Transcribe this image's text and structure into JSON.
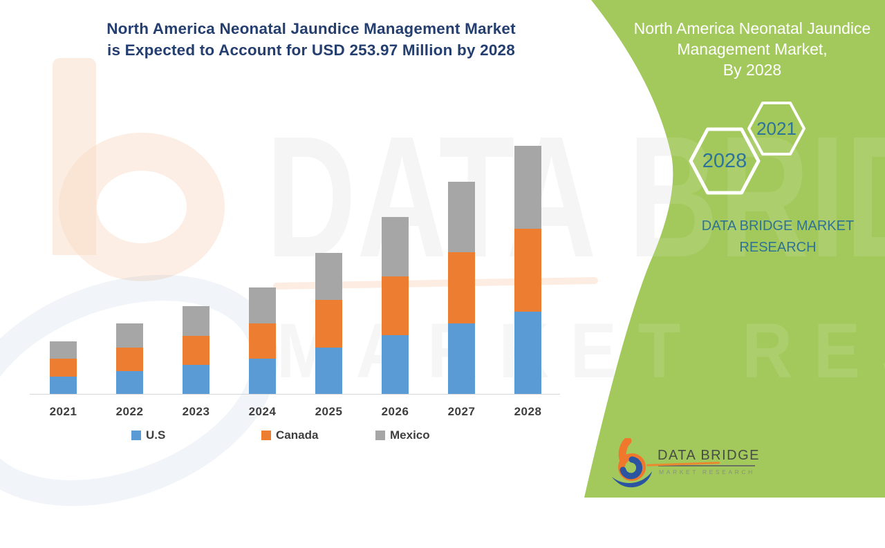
{
  "header": {
    "title_line1": "North America Neonatal Jaundice Management Market",
    "title_line2": "is Expected to Account for USD 253.97 Million by 2028",
    "color": "#243E6F"
  },
  "chart_data": {
    "type": "bar",
    "stacked": true,
    "title": "North America Neonatal Jaundice Management Market is Expected to Account for USD 253.97 Million by 2028",
    "unit": "USD Million",
    "categories": [
      "2021",
      "2022",
      "2023",
      "2024",
      "2025",
      "2026",
      "2027",
      "2028"
    ],
    "series": [
      {
        "name": "U.S",
        "color": "#5B9BD5",
        "values": [
          17.7,
          23.3,
          29.7,
          36.1,
          47.4,
          60.1,
          72.2,
          84.2
        ]
      },
      {
        "name": "Canada",
        "color": "#ED7D31",
        "values": [
          18.4,
          24.1,
          29.7,
          36.1,
          48.8,
          60.1,
          72.9,
          84.9
        ]
      },
      {
        "name": "Mexico",
        "color": "#A6A6A6",
        "values": [
          17.7,
          24.8,
          30.4,
          36.8,
          48.1,
          60.8,
          72.2,
          84.9
        ]
      }
    ],
    "callout_total_2028": 253.97,
    "ylim": [
      0,
      260
    ],
    "gridlines": false,
    "legend_position": "bottom"
  },
  "side_panel": {
    "background": "#A3C95C",
    "title_line1": "North America Neonatal Jaundice",
    "title_line2": "Management Market,",
    "title_line3": "By 2028",
    "hexagons": [
      {
        "label": "2021"
      },
      {
        "label": "2028"
      }
    ],
    "brand_line1": "DATA BRIDGE MARKET",
    "brand_line2": "RESEARCH",
    "text_color": "#2C739C"
  },
  "logo": {
    "name": "DATA BRIDGE",
    "tagline": "MARKET RESEARCH"
  },
  "watermark": {
    "line1": "DATA BRIDGE",
    "line2": "MARKET RESEARCH"
  }
}
